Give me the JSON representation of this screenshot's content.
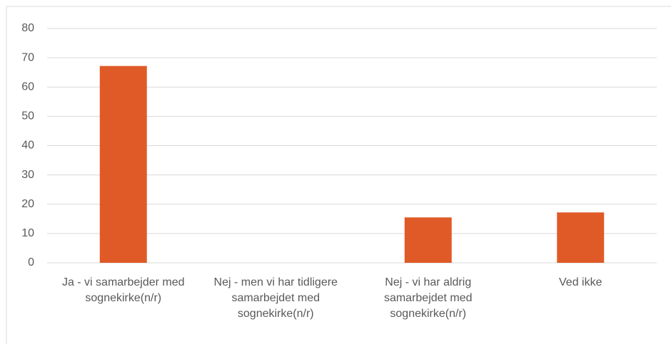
{
  "chart_data": {
    "type": "bar",
    "categories": [
      "Ja - vi samarbejder med sognekirke(n/r)",
      "Nej - men vi har tidligere samarbejdet med sognekirke(n/r)",
      "Nej - vi har aldrig samarbejdet med sognekirke(n/r)",
      "Ved ikke"
    ],
    "values": [
      67.2,
      0,
      15.5,
      17.2
    ],
    "color": "#e05a27",
    "ylim": [
      0,
      80
    ],
    "yticks": [
      0,
      10,
      20,
      30,
      40,
      50,
      60,
      70,
      80
    ],
    "grid": true
  }
}
